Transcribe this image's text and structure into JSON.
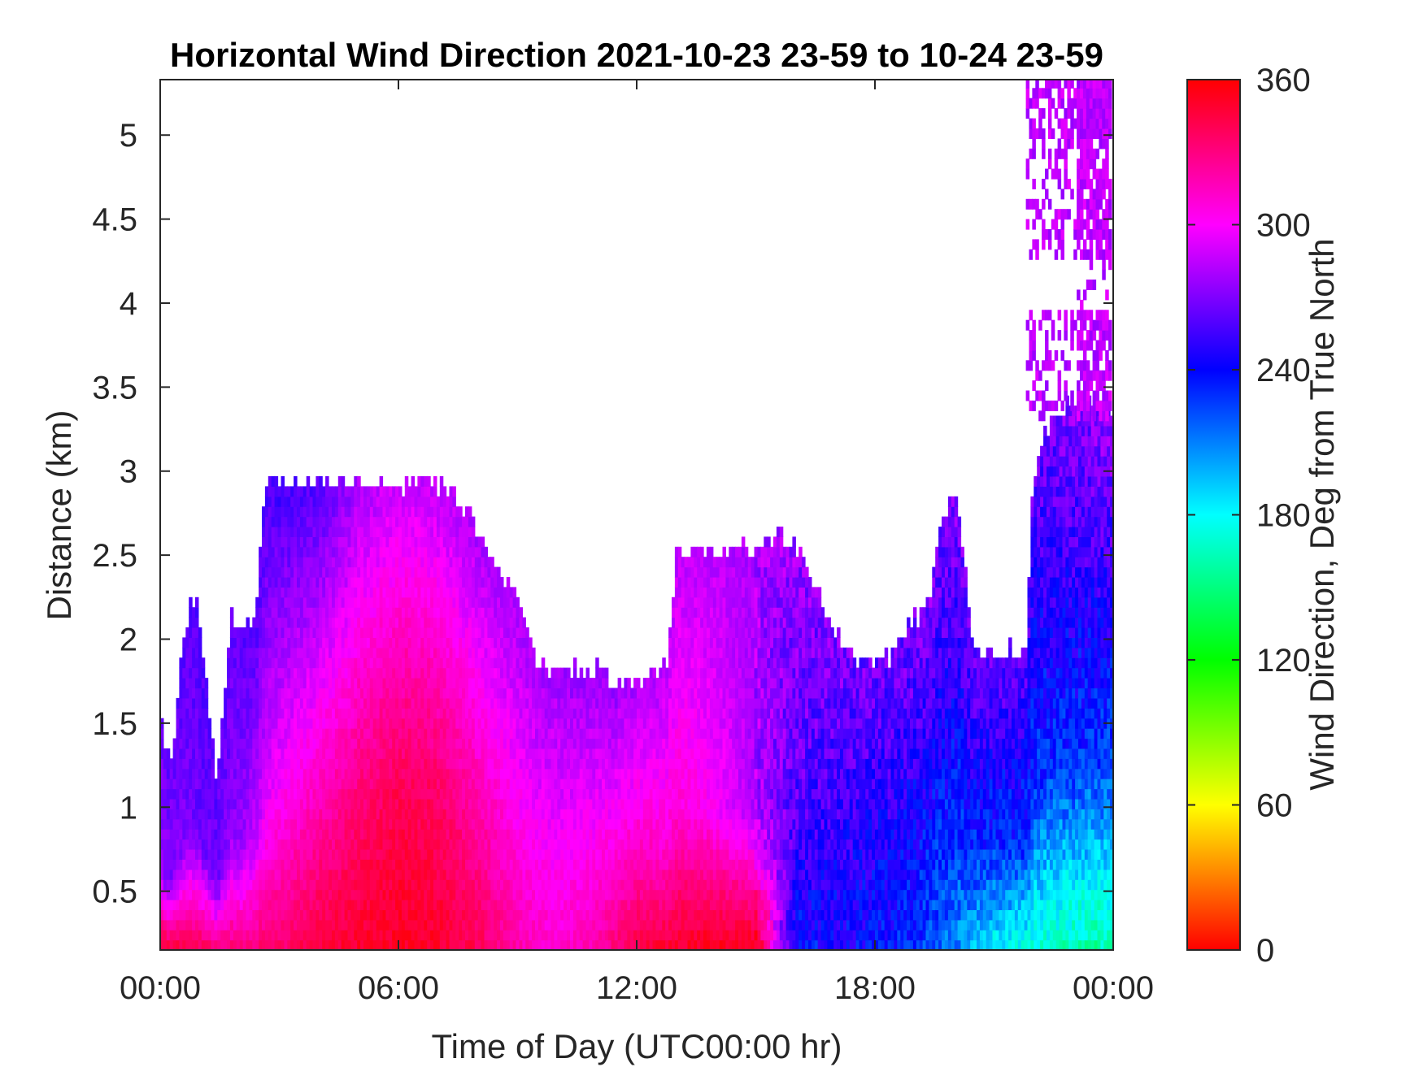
{
  "chart_data": {
    "type": "heatmap",
    "title": "Horizontal Wind Direction 2021-10-23 23-59 to 10-24 23-59",
    "xlabel": "Time of Day (UTC00:00 hr)",
    "ylabel": "Distance (km)",
    "x_tick_labels": [
      "00:00",
      "06:00",
      "12:00",
      "18:00",
      "00:00"
    ],
    "x_tick_values_hr": [
      0,
      6,
      12,
      18,
      24
    ],
    "xlim_hr": [
      0,
      24
    ],
    "y_tick_labels": [
      "0.5",
      "1",
      "1.5",
      "2",
      "2.5",
      "3",
      "3.5",
      "4",
      "4.5",
      "5"
    ],
    "y_tick_values_km": [
      0.5,
      1,
      1.5,
      2,
      2.5,
      3,
      3.5,
      4,
      4.5,
      5
    ],
    "ylim_km": [
      0.15,
      5.33
    ],
    "grid": false,
    "colorbar": {
      "label": "Wind Direction, Deg from True North",
      "tick_labels": [
        "0",
        "60",
        "120",
        "180",
        "240",
        "300",
        "360"
      ],
      "tick_values": [
        0,
        60,
        120,
        180,
        240,
        300,
        360
      ],
      "range": [
        0,
        360
      ],
      "colormap": "hsv"
    },
    "coverage_top_km": {
      "hours": [
        0,
        0.25,
        0.5,
        0.8,
        1.0,
        1.2,
        1.4,
        1.6,
        1.8,
        2.0,
        2.2,
        2.4,
        2.6,
        2.8,
        3.0,
        3.5,
        4.0,
        4.5,
        5.0,
        5.5,
        6.0,
        6.5,
        7.0,
        7.5,
        8.0,
        8.5,
        9.0,
        9.5,
        10.0,
        10.5,
        11.0,
        11.5,
        12.0,
        12.5,
        12.8,
        13.0,
        13.5,
        14.0,
        14.5,
        15.0,
        15.5,
        16.0,
        16.5,
        17.0,
        17.5,
        18.0,
        18.5,
        19.0,
        19.3,
        19.6,
        20.0,
        20.5,
        21.0,
        21.5,
        21.8,
        22.0,
        22.5,
        23.0,
        23.5,
        24.0
      ],
      "top_km": [
        1.5,
        1.2,
        1.8,
        2.2,
        2.1,
        1.6,
        1.2,
        1.5,
        2.1,
        2.0,
        2.1,
        2.1,
        2.8,
        2.9,
        2.9,
        2.9,
        2.9,
        2.9,
        2.9,
        2.9,
        2.9,
        2.9,
        2.9,
        2.8,
        2.6,
        2.4,
        2.2,
        1.8,
        1.8,
        1.8,
        1.8,
        1.7,
        1.7,
        1.8,
        1.9,
        2.5,
        2.5,
        2.5,
        2.5,
        2.5,
        2.6,
        2.5,
        2.3,
        2.0,
        1.9,
        1.8,
        1.9,
        2.1,
        2.1,
        2.6,
        2.9,
        1.9,
        1.9,
        1.9,
        1.9,
        3.0,
        3.3,
        3.4,
        3.4,
        3.3
      ]
    },
    "direction_profile_deg": {
      "hours": [
        0,
        1,
        2,
        3,
        4,
        5,
        6,
        7,
        8,
        9,
        10,
        11,
        12,
        13,
        14,
        15,
        16,
        17,
        18,
        19,
        20,
        21,
        22,
        23,
        24
      ],
      "near_surface": [
        350,
        340,
        330,
        335,
        345,
        350,
        352,
        350,
        340,
        320,
        310,
        320,
        345,
        350,
        355,
        355,
        235,
        240,
        240,
        230,
        210,
        180,
        170,
        160,
        160
      ],
      "mid_level": [
        275,
        265,
        275,
        300,
        315,
        330,
        340,
        335,
        320,
        305,
        300,
        305,
        315,
        310,
        300,
        280,
        260,
        250,
        245,
        240,
        235,
        230,
        230,
        230,
        225
      ],
      "upper_level": [
        265,
        260,
        262,
        255,
        260,
        280,
        290,
        285,
        280,
        280,
        278,
        275,
        280,
        285,
        285,
        280,
        275,
        270,
        265,
        268,
        270,
        262,
        262,
        270,
        275
      ]
    },
    "upper_cloud": {
      "hours_range": [
        21.8,
        23.9
      ],
      "km_range": [
        3.3,
        5.33
      ],
      "direction_deg": 285
    }
  }
}
